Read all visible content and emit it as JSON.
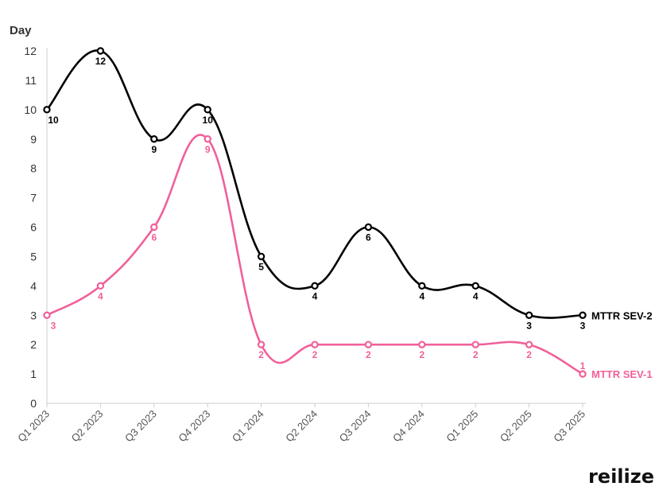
{
  "chart_data": {
    "type": "line",
    "ylabel": "Day",
    "ylim": [
      0,
      12
    ],
    "yticks": [
      0,
      1,
      2,
      3,
      4,
      5,
      6,
      7,
      8,
      9,
      10,
      11,
      12
    ],
    "categories": [
      "Q1 2023",
      "Q2 2023",
      "Q3 2023",
      "Q4 2023",
      "Q1 2024",
      "Q2 2024",
      "Q3 2024",
      "Q4 2024",
      "Q1 2025",
      "Q2 2025",
      "Q3 2025"
    ],
    "series": [
      {
        "name": "MTTR SEV-2",
        "values": [
          10,
          12,
          9,
          10,
          5,
          4,
          6,
          4,
          4,
          3,
          3
        ],
        "color": "#000000"
      },
      {
        "name": "MTTR SEV-1",
        "values": [
          3,
          4,
          6,
          9,
          2,
          2,
          2,
          2,
          2,
          2,
          1
        ],
        "color": "#f0609a"
      }
    ],
    "smooth": true,
    "data_labels": true,
    "grid": false,
    "legend": "series names at line ends"
  },
  "brand": {
    "text": "reilize"
  }
}
